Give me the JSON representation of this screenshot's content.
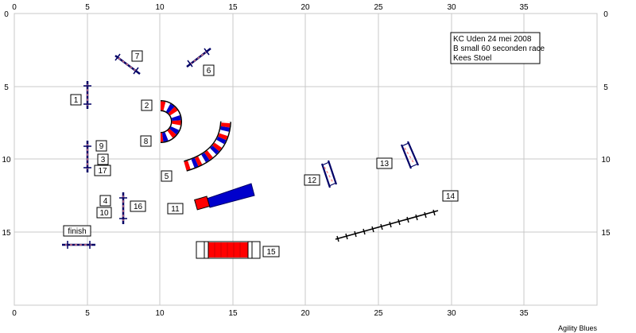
{
  "axis": {
    "x_ticks": [
      "0",
      "5",
      "10",
      "15",
      "20",
      "25",
      "30",
      "35"
    ],
    "y_ticks": [
      "0",
      "5",
      "10",
      "15"
    ]
  },
  "info_box": {
    "line1": "KC Uden 24 mei 2008",
    "line2": "B small 60 seconden race",
    "line3": "Kees Stoel"
  },
  "labels": {
    "n1": "1",
    "n2": "2",
    "n3": "3",
    "n4": "4",
    "n5": "5",
    "n6": "6",
    "n7": "7",
    "n8": "8",
    "n9": "9",
    "n10": "10",
    "n11": "11",
    "n12": "12",
    "n13": "13",
    "n14": "14",
    "n15": "15",
    "n16": "16",
    "n17": "17",
    "finish": "finish"
  },
  "footer": "Agility Blues",
  "colors": {
    "grid": "#c8c8c8",
    "blue": "#0000cc",
    "red": "#ff0000",
    "navy": "#000066",
    "pole_stripe": "#ff8c8c"
  }
}
